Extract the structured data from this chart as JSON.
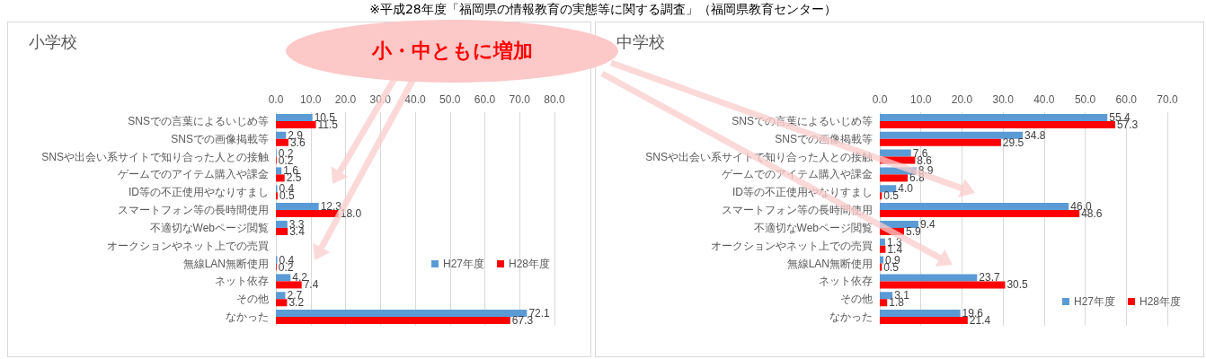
{
  "chart_data": [
    {
      "type": "bar",
      "orientation": "horizontal",
      "title": "小学校",
      "categories": [
        "SNSでの言葉によるいじめ等",
        "SNSでの画像掲載等",
        "SNSや出会い系サイトで知り合った人との接触",
        "ゲームでのアイテム購入や課金",
        "ID等の不正使用やなりすまし",
        "スマートフォン等の長時間使用",
        "不適切なWebページ閲覧",
        "オークションやネット上での売買",
        "無線LAN無断使用",
        "ネット依存",
        "その他",
        "なかった"
      ],
      "series": [
        {
          "name": "H27年度",
          "color": "#5b9bd5",
          "values": [
            10.5,
            2.9,
            0.2,
            1.6,
            0.4,
            12.3,
            3.3,
            null,
            0.4,
            4.2,
            2.7,
            72.1
          ],
          "value_labels": [
            "10.5",
            "2.9",
            "0.2",
            "1.6",
            "0.4",
            "12.3",
            "3.3",
            null,
            "0.4",
            "4.2",
            "2.7",
            "72.1"
          ]
        },
        {
          "name": "H28年度",
          "color": "#ff0000",
          "values": [
            11.5,
            3.6,
            0.2,
            2.5,
            0.5,
            18.0,
            3.4,
            null,
            0.2,
            7.4,
            3.2,
            67.3
          ],
          "value_labels": [
            "11.5",
            "3.6",
            "0.2",
            "2.5",
            "0.5",
            "18.0",
            "3.4",
            null,
            "0.2",
            "7.4",
            "3.2",
            "67.3"
          ]
        }
      ],
      "xlim": [
        0,
        80
      ],
      "xticks": [
        {
          "value": 0,
          "label": "0.0"
        },
        {
          "value": 10,
          "label": "10.0"
        },
        {
          "value": 20,
          "label": "20.0"
        },
        {
          "value": 30,
          "label": "30.0"
        },
        {
          "value": 40,
          "label": "40.0"
        },
        {
          "value": 50,
          "label": "50.0"
        },
        {
          "value": 60,
          "label": "60.0"
        },
        {
          "value": 70,
          "label": "70.0"
        },
        {
          "value": 80,
          "label": "80.0"
        }
      ],
      "grid": "x",
      "legend": "bottom right",
      "annotations": [
        "※平成28年度「福岡県の情報教育の実態等に関する調査」（福岡県教育センター）",
        "小・中ともに増加"
      ]
    },
    {
      "type": "bar",
      "orientation": "horizontal",
      "title": "中学校",
      "categories": [
        "SNSでの言葉によるいじめ等",
        "SNSでの画像掲載等",
        "SNSや出会い系サイトで知り合った人との接触",
        "ゲームでのアイテム購入や課金",
        "ID等の不正使用やなりすまし",
        "スマートフォン等の長時間使用",
        "不適切なWebページ閲覧",
        "オークションやネット上での売買",
        "無線LAN無断使用",
        "ネット依存",
        "その他",
        "なかった"
      ],
      "series": [
        {
          "name": "H27年度",
          "color": "#5b9bd5",
          "values": [
            55.4,
            34.8,
            7.6,
            8.9,
            4.0,
            46.0,
            9.4,
            1.3,
            0.9,
            23.7,
            3.1,
            19.6
          ],
          "value_labels": [
            "55.4",
            "34.8",
            "7.6",
            "8.9",
            "4.0",
            "46.0",
            "9.4",
            "1.3",
            "0.9",
            "23.7",
            "3.1",
            "19.6"
          ]
        },
        {
          "name": "H28年度",
          "color": "#ff0000",
          "values": [
            57.3,
            29.5,
            8.6,
            6.8,
            0.5,
            48.6,
            5.9,
            1.4,
            0.5,
            30.5,
            1.8,
            21.4
          ],
          "value_labels": [
            "57.3",
            "29.5",
            "8.6",
            "6.8",
            "0.5",
            "48.6",
            "5.9",
            "1.4",
            "0.5",
            "30.5",
            "1.8",
            "21.4"
          ]
        }
      ],
      "xlim": [
        0,
        70
      ],
      "xticks": [
        {
          "value": 0,
          "label": "0.0"
        },
        {
          "value": 10,
          "label": "10.0"
        },
        {
          "value": 20,
          "label": "20.0"
        },
        {
          "value": 30,
          "label": "30.0"
        },
        {
          "value": 40,
          "label": "40.0"
        },
        {
          "value": 50,
          "label": "50.0"
        },
        {
          "value": 60,
          "label": "60.0"
        },
        {
          "value": 70,
          "label": "70.0"
        }
      ],
      "grid": "x",
      "legend": "bottom right"
    }
  ]
}
